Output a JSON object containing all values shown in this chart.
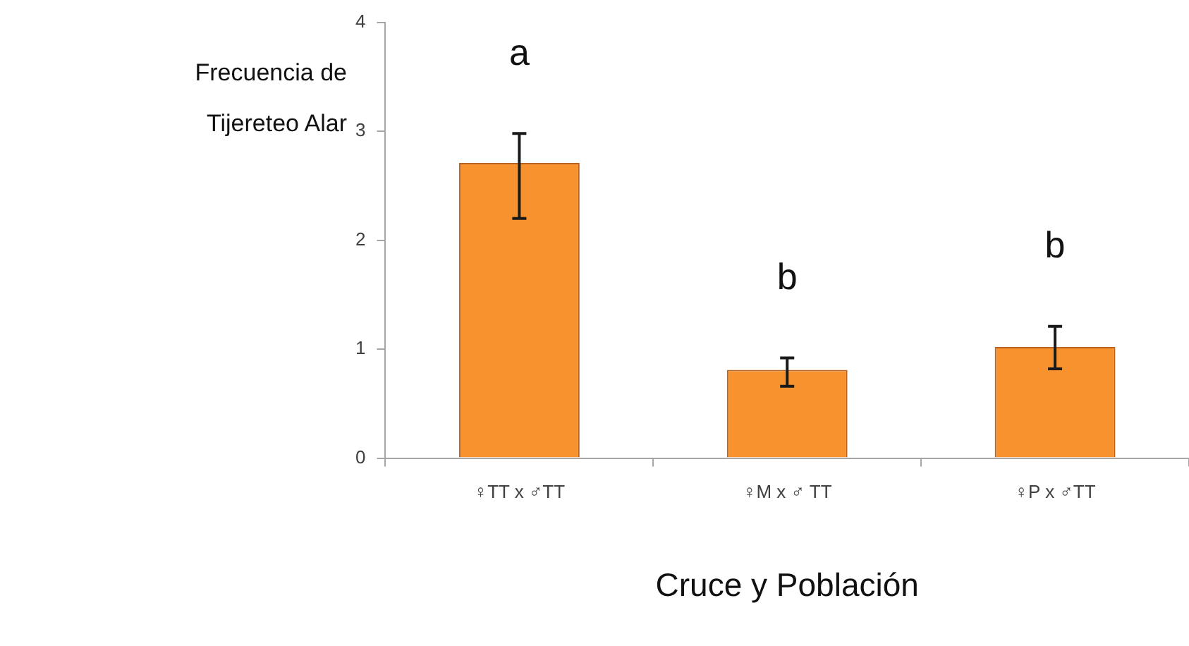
{
  "chart_data": {
    "type": "bar",
    "xlabel": "Cruce y Población",
    "ylabel": "Frecuencia de Tijereteo Alar",
    "categories": [
      "♀TT x ♂TT",
      "♀M x ♂ TT",
      "♀P x ♂TT"
    ],
    "values": [
      2.71,
      0.81,
      1.02
    ],
    "color": "#f7922f",
    "errors": [
      [
        2.2,
        2.98
      ],
      [
        0.66,
        0.92
      ],
      [
        0.82,
        1.21
      ]
    ],
    "ylim": [
      0,
      4
    ],
    "yticks": [
      0,
      1,
      2,
      3,
      4
    ],
    "annotations": [
      "a",
      "b",
      "b"
    ]
  }
}
